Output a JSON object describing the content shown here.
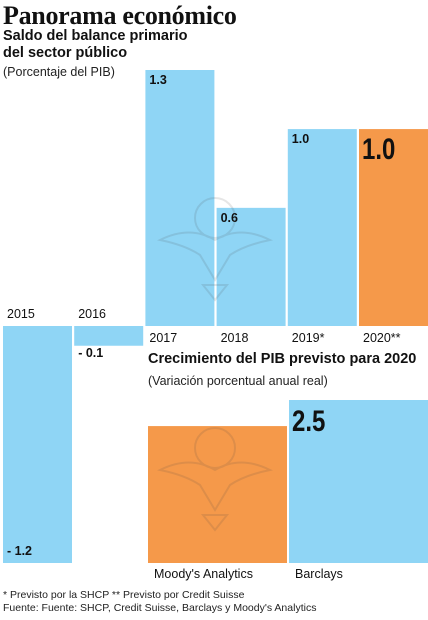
{
  "header": {
    "title": "Panorama económico",
    "subtitle": "Saldo del balance primario del sector público",
    "unit_note": "(Porcentaje del PIB)"
  },
  "chart_data": [
    {
      "type": "bar",
      "title": "Saldo del balance primario del sector público",
      "subtitle": "(Porcentaje del PIB)",
      "categories": [
        "2015",
        "2016",
        "2017",
        "2018",
        "2019*",
        "2020**"
      ],
      "values": [
        -1.2,
        -0.1,
        1.3,
        0.6,
        1.0,
        1.0
      ],
      "value_labels": [
        "- 1.2",
        "- 0.1",
        "1.3",
        "0.6",
        "1.0",
        "1.0"
      ],
      "colors": [
        "#8fd5f5",
        "#8fd5f5",
        "#8fd5f5",
        "#8fd5f5",
        "#8fd5f5",
        "#f5994a"
      ],
      "ylim": [
        -1.2,
        1.3
      ]
    },
    {
      "type": "bar",
      "title": "Crecimiento del PIB previsto para 2020",
      "subtitle": "(Variación porcentual anual real)",
      "categories": [
        "Moody's Analytics",
        "Barclays"
      ],
      "values": [
        2.1,
        2.5
      ],
      "value_labels": [
        "",
        "2.5"
      ],
      "colors": [
        "#f5994a",
        "#8fd5f5"
      ]
    }
  ],
  "footer": {
    "notes": "* Previsto por la SHCP ** Previsto por Credit Suisse",
    "source": "Fuente: Fuente: SHCP, Credit Suisse, Barclays y Moody's Analytics"
  }
}
